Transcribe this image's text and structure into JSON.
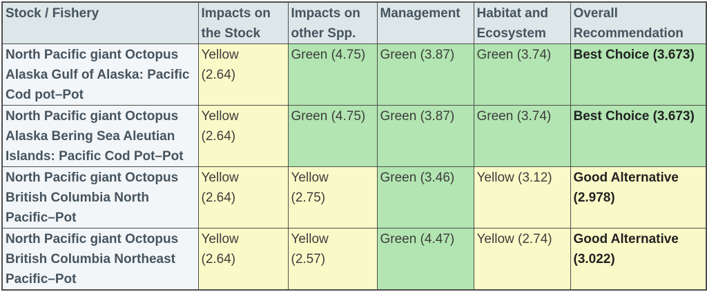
{
  "colors": {
    "yellow": "#fafac8",
    "green": "#b2e5b1",
    "header_bg": "#dde6e8",
    "stock_bg": "#f2f6f8",
    "border": "#4c4c4c",
    "header_text": "#46545f"
  },
  "table": {
    "columns": [
      "Stock / Fishery",
      "Impacts on\nthe Stock",
      "Impacts on\nother Spp.",
      "Management",
      "Habitat and\nEcosystem",
      "Overall\nRecommendation"
    ],
    "rows": [
      {
        "stock": "North Pacific giant Octopus\nAlaska Gulf of Alaska: Pacific\nCod pot–Pot",
        "cells": [
          {
            "text": "Yellow\n(2.64)",
            "rating": "yellow"
          },
          {
            "text": "Green (4.75)",
            "rating": "green"
          },
          {
            "text": "Green (3.87)",
            "rating": "green"
          },
          {
            "text": "Green (3.74)",
            "rating": "green"
          },
          {
            "text": "Best Choice (3.673)",
            "rating": "green"
          }
        ]
      },
      {
        "stock": "North Pacific giant Octopus\nAlaska Bering Sea Aleutian\nIslands: Pacific Cod Pot–Pot",
        "cells": [
          {
            "text": "Yellow\n(2.64)",
            "rating": "yellow"
          },
          {
            "text": "Green (4.75)",
            "rating": "green"
          },
          {
            "text": "Green (3.87)",
            "rating": "green"
          },
          {
            "text": "Green (3.74)",
            "rating": "green"
          },
          {
            "text": "Best Choice (3.673)",
            "rating": "green"
          }
        ]
      },
      {
        "stock": "North Pacific giant Octopus\nBritish Columbia North\nPacific–Pot",
        "cells": [
          {
            "text": "Yellow\n(2.64)",
            "rating": "yellow"
          },
          {
            "text": "Yellow\n(2.75)",
            "rating": "yellow"
          },
          {
            "text": "Green (3.46)",
            "rating": "green"
          },
          {
            "text": "Yellow (3.12)",
            "rating": "yellow"
          },
          {
            "text": "Good Alternative\n(2.978)",
            "rating": "yellow"
          }
        ]
      },
      {
        "stock": "North Pacific giant Octopus\nBritish Columbia Northeast\nPacific–Pot",
        "cells": [
          {
            "text": "Yellow\n(2.64)",
            "rating": "yellow"
          },
          {
            "text": "Yellow\n(2.57)",
            "rating": "yellow"
          },
          {
            "text": "Green (4.47)",
            "rating": "green"
          },
          {
            "text": "Yellow (2.74)",
            "rating": "yellow"
          },
          {
            "text": "Good Alternative\n(3.022)",
            "rating": "yellow"
          }
        ]
      }
    ]
  }
}
